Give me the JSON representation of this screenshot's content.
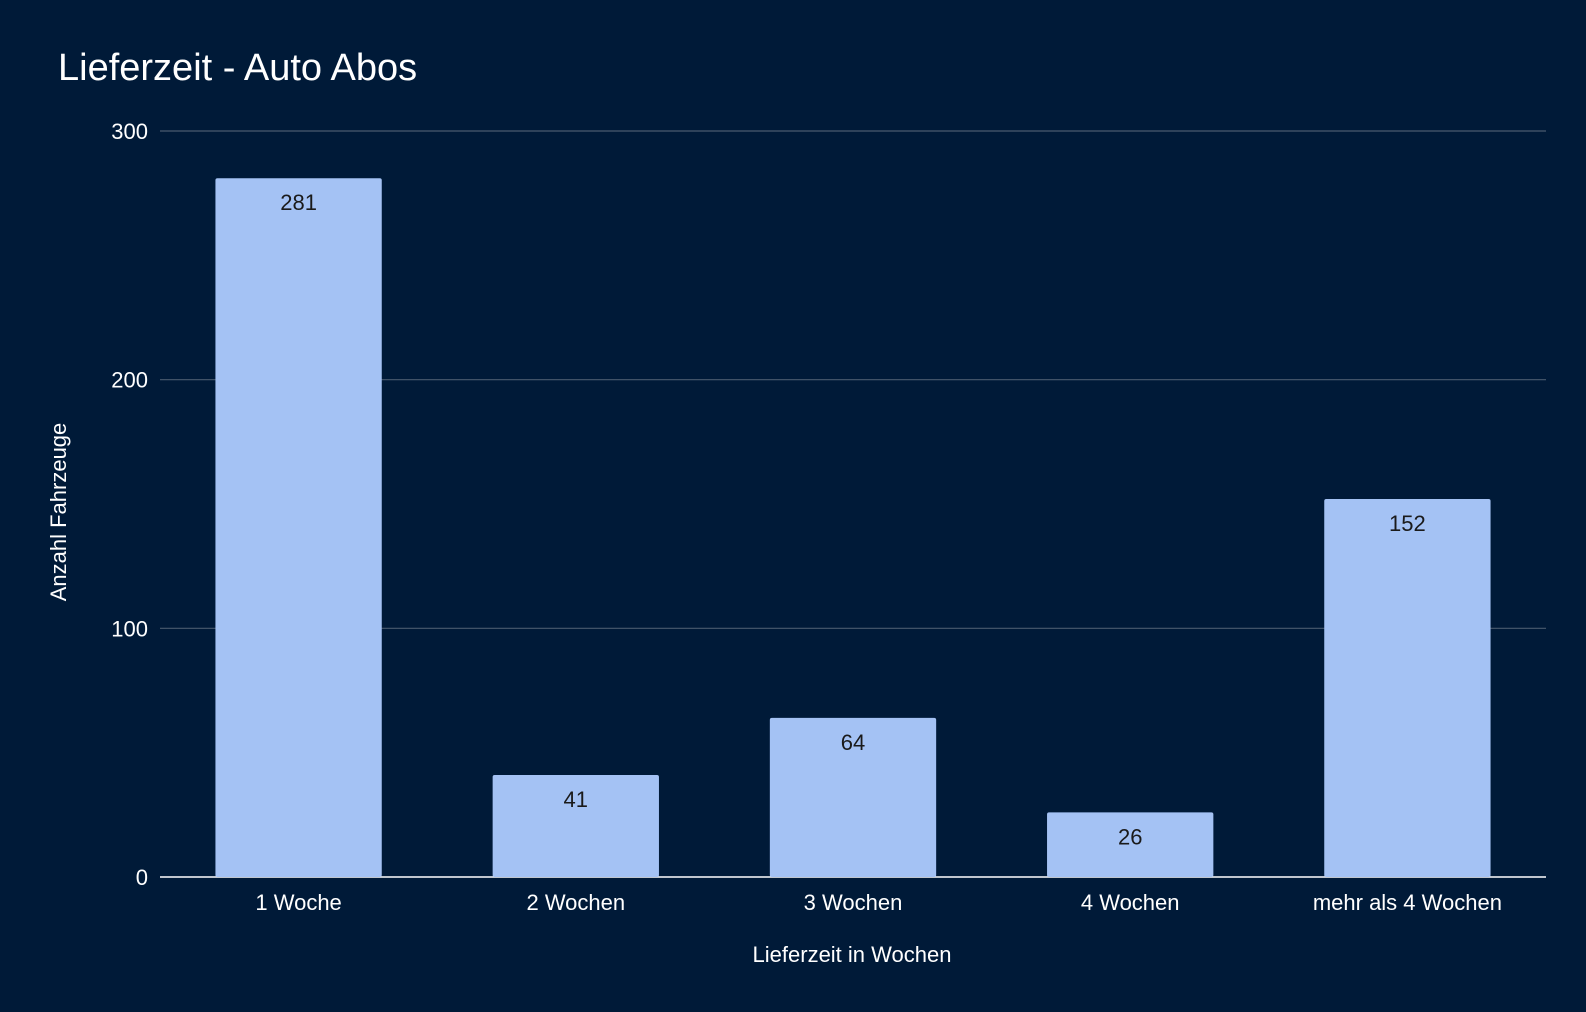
{
  "chart_data": {
    "type": "bar",
    "title": "Lieferzeit - Auto Abos",
    "xlabel": "Lieferzeit in Wochen",
    "ylabel": "Anzahl Fahrzeuge",
    "categories": [
      "1 Woche",
      "2 Wochen",
      "3 Wochen",
      "4 Wochen",
      "mehr als 4 Wochen"
    ],
    "values": [
      281,
      41,
      64,
      26,
      152
    ],
    "data_labels": [
      "281",
      "41",
      "64",
      "26",
      "152"
    ],
    "ylim": [
      0,
      300
    ],
    "yticks": [
      0,
      100,
      200,
      300
    ],
    "ytick_labels": [
      "0",
      "100",
      "200",
      "300"
    ],
    "grid": true,
    "legend": "none",
    "colors": {
      "background": "#001a38",
      "bar": "#a4c2f4",
      "grid": "#4a5a6e",
      "text": "#ffffff",
      "data_label": "#1a1a1a"
    }
  }
}
